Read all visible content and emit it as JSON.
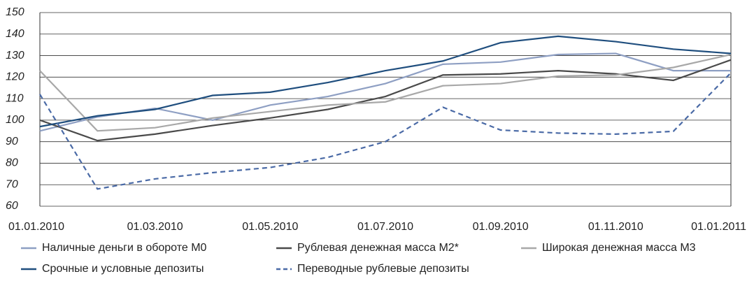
{
  "chart_data": {
    "type": "line",
    "categories": [
      "01.01.2010",
      null,
      "01.03.2010",
      null,
      "01.05.2010",
      null,
      "01.07.2010",
      null,
      "01.09.2010",
      null,
      "01.11.2010",
      null,
      "01.01.2011"
    ],
    "ylim": [
      60,
      150
    ],
    "yticks": [
      60,
      70,
      80,
      90,
      100,
      110,
      120,
      130,
      140,
      150
    ],
    "grid": true,
    "series": [
      {
        "name": "Наличные деньги в обороте М0",
        "color": "#8e9fc3",
        "dashed": false,
        "values": [
          95,
          101.5,
          105.5,
          100,
          107,
          111,
          117,
          126,
          127,
          130.5,
          131,
          123,
          123
        ]
      },
      {
        "name": "Рублевая денежная масса М2*",
        "color": "#4a4a4a",
        "dashed": false,
        "values": [
          100,
          90.5,
          93.5,
          97.5,
          101,
          105,
          111,
          121,
          121.5,
          123,
          121.5,
          118.5,
          128
        ]
      },
      {
        "name": "Широкая денежная масса М3",
        "color": "#a8a8a8",
        "dashed": false,
        "values": [
          123,
          95,
          96.5,
          101,
          104,
          107,
          108.5,
          116,
          117,
          120.5,
          121,
          124.5,
          130.5
        ]
      },
      {
        "name": "Срочные и условные депозиты",
        "color": "#1f4e7e",
        "dashed": false,
        "values": [
          97,
          102,
          105,
          111.5,
          113,
          117.5,
          123,
          127.5,
          136,
          139,
          136.5,
          133,
          131
        ]
      },
      {
        "name": "Переводные рублевые депозиты",
        "color": "#4a6aa6",
        "dashed": true,
        "values": [
          112,
          68,
          72.7,
          75.6,
          78,
          82.7,
          90,
          106,
          95.4,
          94,
          93.5,
          94.8,
          122
        ]
      }
    ]
  }
}
